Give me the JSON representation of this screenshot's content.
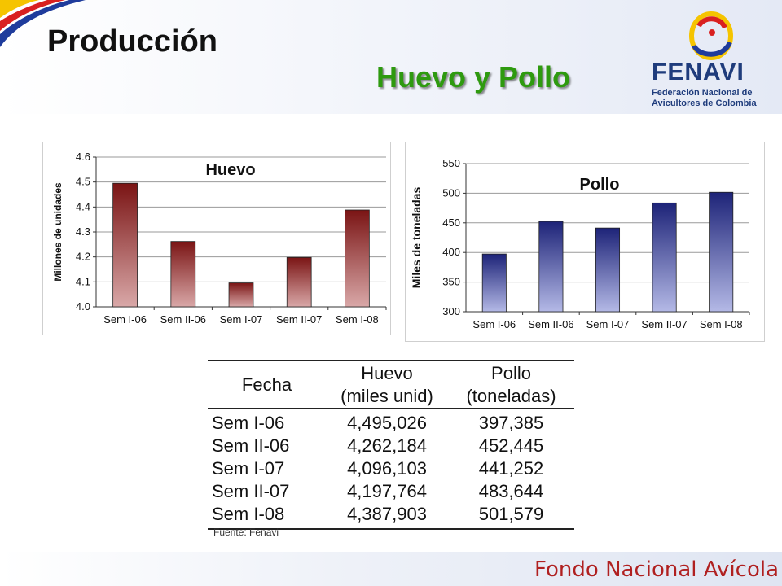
{
  "slide": {
    "title": "Producción",
    "subtitle": "Huevo y Pollo",
    "footer": "Fondo Nacional Avícola",
    "source": "Fuente: Fenavi"
  },
  "brand": {
    "name": "FENAVI",
    "line1": "Federación Nacional de",
    "line2": "Avicultores de Colombia"
  },
  "colors": {
    "huevo_bar_top": "#7a1414",
    "huevo_bar_bottom": "#d9a8a8",
    "pollo_bar_top": "#1d2378",
    "pollo_bar_bottom": "#b4b9e6",
    "subtitle_green": "#2e9a0f"
  },
  "chart_data": [
    {
      "type": "bar",
      "title": "Huevo",
      "categories": [
        "Sem I-06",
        "Sem II-06",
        "Sem I-07",
        "Sem II-07",
        "Sem I-08"
      ],
      "values": [
        4.495,
        4.262,
        4.096,
        4.198,
        4.388
      ],
      "ylabel": "Millones de unidades",
      "xlabel": "",
      "ylim": [
        4.0,
        4.6
      ],
      "yticks": [
        "4.0",
        "4.1",
        "4.2",
        "4.3",
        "4.4",
        "4.5",
        "4.6"
      ],
      "grid": true
    },
    {
      "type": "bar",
      "title": "Pollo",
      "categories": [
        "Sem I-06",
        "Sem II-06",
        "Sem I-07",
        "Sem II-07",
        "Sem I-08"
      ],
      "values": [
        397.4,
        452.4,
        441.3,
        483.6,
        501.6
      ],
      "ylabel": "Miles de toneladas",
      "xlabel": "",
      "ylim": [
        300,
        550
      ],
      "yticks": [
        "300",
        "350",
        "400",
        "450",
        "500",
        "550"
      ],
      "grid": true
    }
  ],
  "table": {
    "headers": [
      {
        "line1": "Fecha",
        "line2": ""
      },
      {
        "line1": "Huevo",
        "line2": "(miles unid)"
      },
      {
        "line1": "Pollo",
        "line2": "(toneladas)"
      }
    ],
    "rows": [
      [
        "Sem I-06",
        "4,495,026",
        "397,385"
      ],
      [
        "Sem II-06",
        "4,262,184",
        "452,445"
      ],
      [
        "Sem I-07",
        "4,096,103",
        "441,252"
      ],
      [
        "Sem II-07",
        "4,197,764",
        "483,644"
      ],
      [
        "Sem I-08",
        "4,387,903",
        "501,579"
      ]
    ]
  }
}
